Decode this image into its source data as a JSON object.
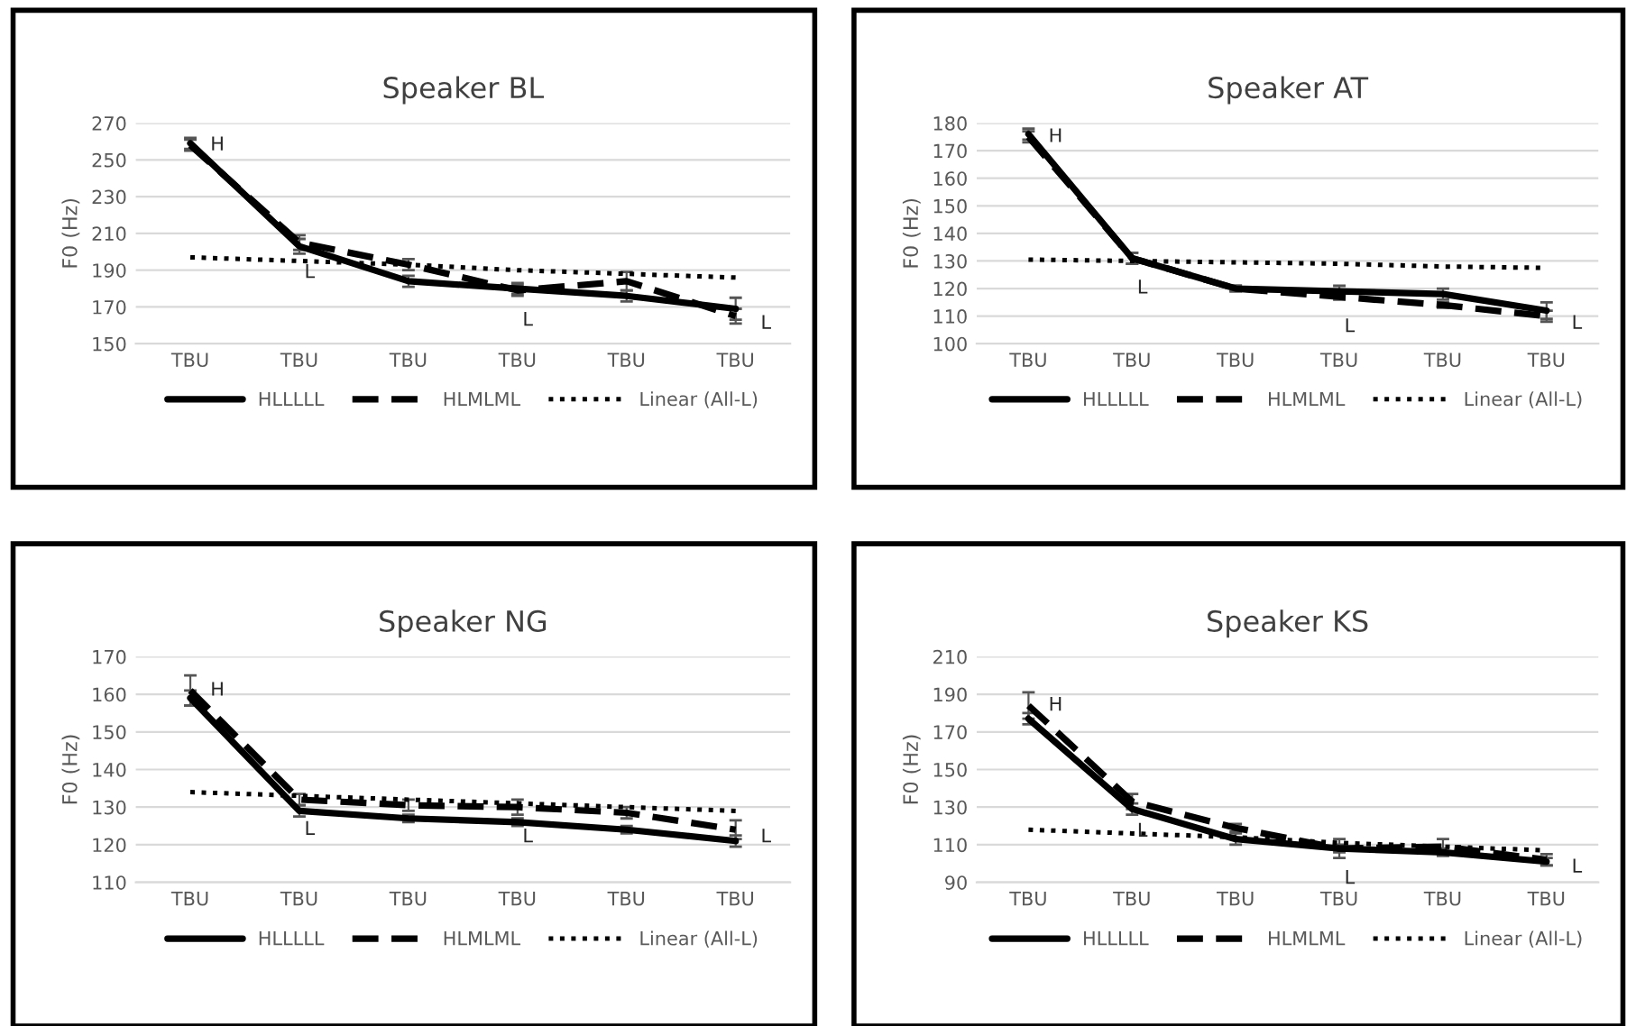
{
  "chart_data": [
    {
      "type": "line",
      "title": "Speaker BL",
      "ylabel": "F0 (Hz)",
      "categories": [
        "TBU",
        "TBU",
        "TBU",
        "TBU",
        "TBU",
        "TBU"
      ],
      "ylim": [
        150,
        270
      ],
      "yticks": [
        150,
        170,
        190,
        210,
        230,
        250,
        270
      ],
      "grid": "y",
      "legend": "bottom",
      "series": [
        {
          "name": "HLLLLL",
          "color": "#000000",
          "line_style": "solid",
          "values": [
            259,
            203,
            184,
            180,
            176,
            169
          ],
          "errors": [
            3,
            4,
            3,
            3,
            3,
            6
          ]
        },
        {
          "name": "HLMLML",
          "color": "#000000",
          "line_style": "dashed",
          "values": [
            258,
            205,
            193,
            179,
            184,
            165
          ],
          "errors": [
            3,
            4,
            3,
            3,
            5,
            4
          ]
        },
        {
          "name": "Linear (All-L)",
          "color": "#000000",
          "line_style": "dotted",
          "values": [
            197,
            195,
            193,
            190,
            188,
            186
          ]
        }
      ],
      "annotations": [
        "H",
        "L",
        "L",
        "L"
      ]
    },
    {
      "type": "line",
      "title": "Speaker AT",
      "ylabel": "F0 (Hz)",
      "categories": [
        "TBU",
        "TBU",
        "TBU",
        "TBU",
        "TBU",
        "TBU"
      ],
      "ylim": [
        100,
        180
      ],
      "yticks": [
        100,
        110,
        120,
        130,
        140,
        150,
        160,
        170,
        180
      ],
      "grid": "y",
      "legend": "bottom",
      "series": [
        {
          "name": "HLLLLL",
          "color": "#000000",
          "line_style": "solid",
          "values": [
            176,
            131,
            120,
            119,
            118,
            112
          ],
          "errors": [
            2,
            2,
            1,
            2,
            2,
            3
          ]
        },
        {
          "name": "HLMLML",
          "color": "#000000",
          "line_style": "dashed",
          "values": [
            175,
            131,
            120,
            117,
            114,
            110
          ],
          "errors": [
            2,
            2,
            1,
            1,
            1,
            2
          ]
        },
        {
          "name": "Linear (All-L)",
          "color": "#000000",
          "line_style": "dotted",
          "values": [
            130.5,
            130,
            129.5,
            129,
            128,
            127.5
          ]
        }
      ],
      "annotations": [
        "H",
        "L",
        "L",
        "L"
      ]
    },
    {
      "type": "line",
      "title": "Speaker NG",
      "ylabel": "F0 (Hz)",
      "categories": [
        "TBU",
        "TBU",
        "TBU",
        "TBU",
        "TBU",
        "TBU"
      ],
      "ylim": [
        110,
        170
      ],
      "yticks": [
        110,
        120,
        130,
        140,
        150,
        160,
        170
      ],
      "grid": "y",
      "legend": "bottom",
      "series": [
        {
          "name": "HLLLLL",
          "color": "#000000",
          "line_style": "solid",
          "values": [
            159,
            129,
            127,
            126,
            124,
            121
          ],
          "errors": [
            2,
            1.5,
            1,
            1,
            1,
            1.5
          ]
        },
        {
          "name": "HLMLML",
          "color": "#000000",
          "line_style": "dashed",
          "values": [
            161,
            132,
            130.5,
            130,
            128.5,
            124
          ],
          "errors": [
            4,
            1.5,
            1.5,
            2,
            1.5,
            2.5
          ]
        },
        {
          "name": "Linear (All-L)",
          "color": "#000000",
          "line_style": "dotted",
          "values": [
            134,
            133,
            132,
            131,
            130,
            129
          ]
        }
      ],
      "annotations": [
        "H",
        "L",
        "L",
        "L"
      ]
    },
    {
      "type": "line",
      "title": "Speaker KS",
      "ylabel": "F0 (Hz)",
      "categories": [
        "TBU",
        "TBU",
        "TBU",
        "TBU",
        "TBU",
        "TBU"
      ],
      "ylim": [
        90,
        210
      ],
      "yticks": [
        90,
        110,
        130,
        150,
        170,
        190,
        210
      ],
      "grid": "y",
      "legend": "bottom",
      "series": [
        {
          "name": "HLLLLL",
          "color": "#000000",
          "line_style": "solid",
          "values": [
            177,
            129,
            113,
            108,
            106,
            101
          ],
          "errors": [
            3,
            3,
            3,
            2,
            2,
            2
          ]
        },
        {
          "name": "HLMLML",
          "color": "#000000",
          "line_style": "dashed",
          "values": [
            184,
            133,
            119,
            108,
            109,
            102
          ],
          "errors": [
            7,
            4,
            2,
            5,
            4,
            3
          ]
        },
        {
          "name": "Linear (All-L)",
          "color": "#000000",
          "line_style": "dotted",
          "values": [
            118,
            116,
            114,
            111,
            109,
            107
          ]
        }
      ],
      "annotations": [
        "H",
        "L",
        "L",
        "L"
      ]
    }
  ]
}
